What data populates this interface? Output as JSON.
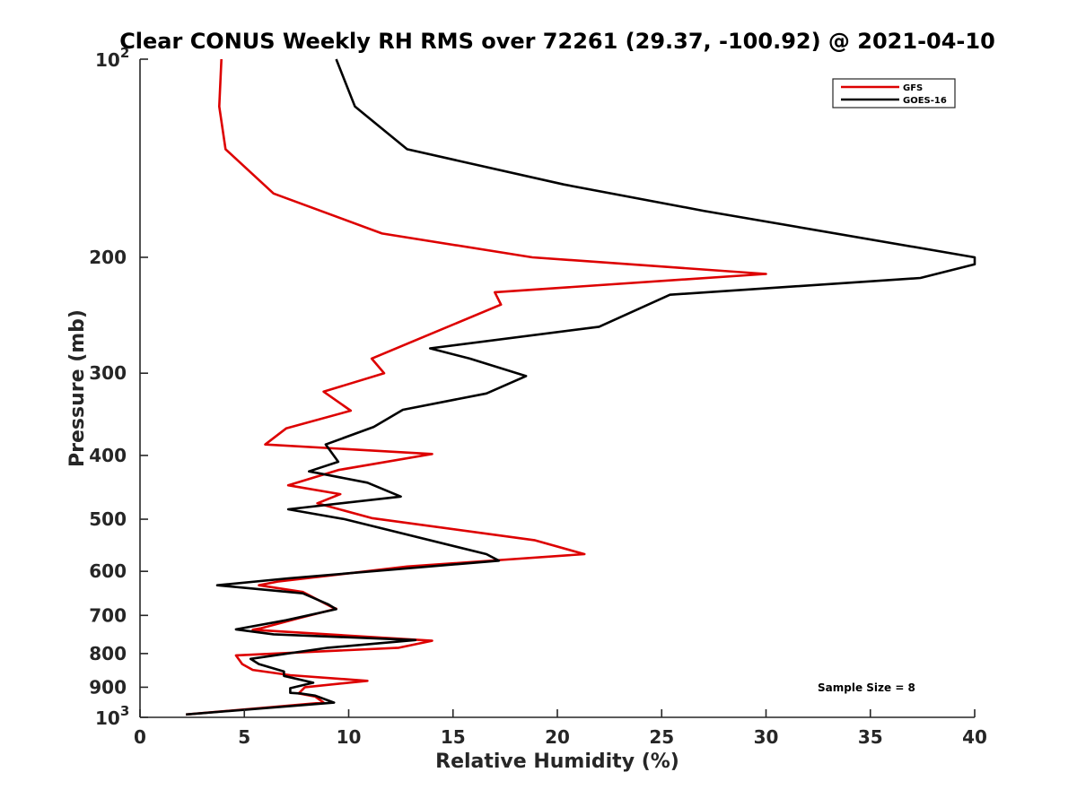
{
  "chart_data": {
    "type": "line",
    "title": "Clear CONUS Weekly RH RMS over 72261 (29.37, -100.92) @ 2021-04-10",
    "xlabel": "Relative Humidity (%)",
    "ylabel": "Pressure (mb)",
    "xlim": [
      0,
      40
    ],
    "ylim": [
      100,
      1000
    ],
    "yscale": "log",
    "y_reversed": true,
    "x_ticks": [
      {
        "value": 0,
        "label": "0"
      },
      {
        "value": 5,
        "label": "5"
      },
      {
        "value": 10,
        "label": "10"
      },
      {
        "value": 15,
        "label": "15"
      },
      {
        "value": 20,
        "label": "20"
      },
      {
        "value": 25,
        "label": "25"
      },
      {
        "value": 30,
        "label": "30"
      },
      {
        "value": 35,
        "label": "35"
      },
      {
        "value": 40,
        "label": "40"
      }
    ],
    "y_ticks": [
      {
        "value": 100,
        "base": "10",
        "exp": "2"
      },
      {
        "value": 200,
        "label": "200"
      },
      {
        "value": 300,
        "label": "300"
      },
      {
        "value": 400,
        "label": "400"
      },
      {
        "value": 500,
        "label": "500"
      },
      {
        "value": 600,
        "label": "600"
      },
      {
        "value": 700,
        "label": "700"
      },
      {
        "value": 800,
        "label": "800"
      },
      {
        "value": 900,
        "label": "900"
      },
      {
        "value": 1000,
        "base": "10",
        "exp": "3"
      }
    ],
    "grid": false,
    "legend_position": "top-right",
    "annotation": "Sample Size = 8",
    "series": [
      {
        "name": "GFS",
        "color": "#dd0000",
        "points": [
          [
            3.9,
            100
          ],
          [
            3.8,
            118
          ],
          [
            4.1,
            137
          ],
          [
            6.4,
            160
          ],
          [
            11.6,
            184
          ],
          [
            18.8,
            200
          ],
          [
            30.0,
            212
          ],
          [
            17.0,
            226
          ],
          [
            17.3,
            236
          ],
          [
            11.1,
            285
          ],
          [
            11.7,
            300
          ],
          [
            8.8,
            320
          ],
          [
            10.1,
            342
          ],
          [
            7.0,
            364
          ],
          [
            6.0,
            385
          ],
          [
            14.0,
            398
          ],
          [
            9.5,
            421
          ],
          [
            7.1,
            444
          ],
          [
            9.6,
            458
          ],
          [
            8.5,
            473
          ],
          [
            11.1,
            498
          ],
          [
            18.9,
            538
          ],
          [
            21.3,
            565
          ],
          [
            12.8,
            590
          ],
          [
            6.6,
            622
          ],
          [
            5.7,
            630
          ],
          [
            7.8,
            645
          ],
          [
            9.2,
            680
          ],
          [
            9.4,
            684
          ],
          [
            7.6,
            707
          ],
          [
            5.8,
            732
          ],
          [
            5.4,
            736
          ],
          [
            14.0,
            765
          ],
          [
            12.4,
            784
          ],
          [
            4.6,
            805
          ],
          [
            4.9,
            830
          ],
          [
            5.4,
            847
          ],
          [
            7.2,
            863
          ],
          [
            10.9,
            880
          ],
          [
            7.9,
            900
          ],
          [
            7.6,
            920
          ],
          [
            8.4,
            930
          ],
          [
            8.8,
            950
          ],
          [
            2.2,
            990
          ]
        ]
      },
      {
        "name": "GOES-16",
        "color": "#000000",
        "points": [
          [
            9.4,
            100
          ],
          [
            10.3,
            118
          ],
          [
            12.8,
            137
          ],
          [
            20.3,
            155
          ],
          [
            27.0,
            170
          ],
          [
            40.0,
            200
          ],
          [
            40.0,
            205
          ],
          [
            37.4,
            215
          ],
          [
            25.4,
            228
          ],
          [
            22.0,
            255
          ],
          [
            13.9,
            275
          ],
          [
            15.8,
            285
          ],
          [
            18.5,
            303
          ],
          [
            16.6,
            322
          ],
          [
            12.6,
            341
          ],
          [
            11.2,
            362
          ],
          [
            8.9,
            385
          ],
          [
            9.5,
            409
          ],
          [
            8.1,
            423
          ],
          [
            10.9,
            440
          ],
          [
            12.5,
            462
          ],
          [
            7.1,
            483
          ],
          [
            9.8,
            500
          ],
          [
            16.6,
            565
          ],
          [
            17.2,
            578
          ],
          [
            7.1,
            615
          ],
          [
            3.7,
            630
          ],
          [
            7.8,
            648
          ],
          [
            9.0,
            673
          ],
          [
            9.4,
            685
          ],
          [
            7.0,
            712
          ],
          [
            4.6,
            735
          ],
          [
            6.4,
            748
          ],
          [
            13.2,
            763
          ],
          [
            9.0,
            784
          ],
          [
            5.3,
            815
          ],
          [
            5.7,
            830
          ],
          [
            6.9,
            852
          ],
          [
            6.9,
            865
          ],
          [
            8.3,
            886
          ],
          [
            7.2,
            903
          ],
          [
            7.2,
            918
          ],
          [
            7.7,
            920
          ],
          [
            8.4,
            927
          ],
          [
            9.3,
            950
          ],
          [
            2.2,
            990
          ]
        ]
      }
    ]
  }
}
